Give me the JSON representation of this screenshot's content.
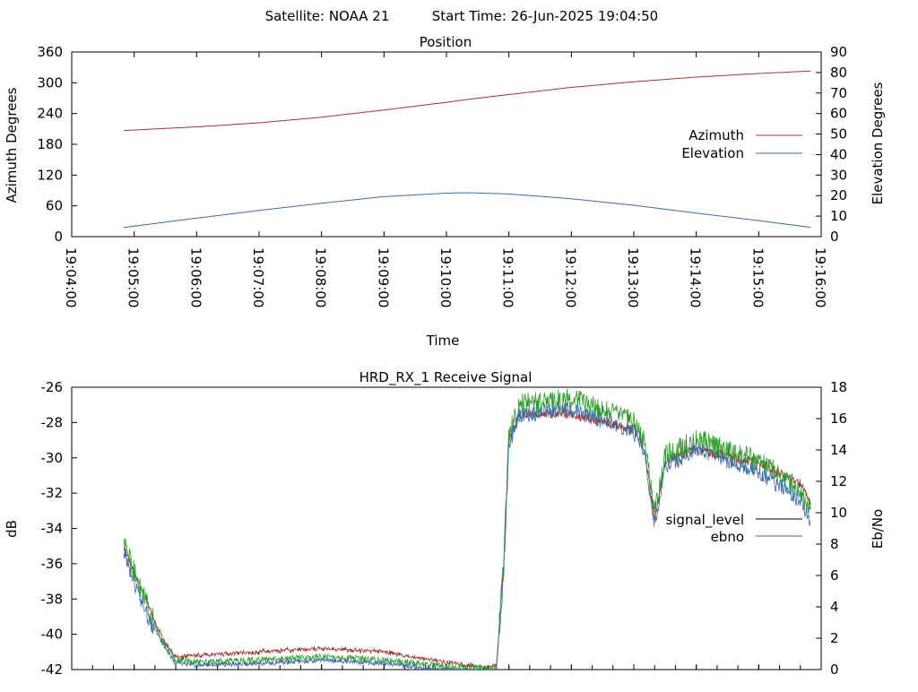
{
  "header": {
    "satellite_label": "Satellite: NOAA 21",
    "start_time_label": "Start Time: 26-Jun-2025 19:04:50"
  },
  "colors": {
    "azimuth": "#a83232",
    "elevation": "#3a6ea5",
    "signal_level": "#9c2f2f",
    "ebno": "#2a9a2a",
    "signal_level_legend": "#000000",
    "ebno_legend": "#3a6ea5",
    "axis": "#000000"
  },
  "chart_data": [
    {
      "type": "line",
      "title": "Position",
      "xlabel": "Time",
      "ylabel": "Azimuth Degrees",
      "y2label": "Elevation Degrees",
      "xlim": [
        "19:04:00",
        "19:16:00"
      ],
      "ylim": [
        0,
        360
      ],
      "y2lim": [
        0,
        90
      ],
      "x_ticks": [
        "19:04:00",
        "19:05:00",
        "19:06:00",
        "19:07:00",
        "19:08:00",
        "19:09:00",
        "19:10:00",
        "19:11:00",
        "19:12:00",
        "19:13:00",
        "19:14:00",
        "19:15:00",
        "19:16:00"
      ],
      "y_ticks": [
        0,
        60,
        120,
        180,
        240,
        300,
        360
      ],
      "y2_ticks": [
        0,
        10,
        20,
        30,
        40,
        50,
        60,
        70,
        80,
        90
      ],
      "legend_position": "right",
      "grid": false,
      "series": [
        {
          "name": "Azimuth",
          "axis": "y",
          "x": [
            "19:04:50",
            "19:06:00",
            "19:07:00",
            "19:08:00",
            "19:09:00",
            "19:10:00",
            "19:10:30",
            "19:11:00",
            "19:12:00",
            "19:13:00",
            "19:14:00",
            "19:15:00",
            "19:15:50"
          ],
          "values": [
            207,
            214,
            222,
            233,
            247,
            262,
            270,
            277,
            291,
            302,
            311,
            318,
            323
          ]
        },
        {
          "name": "Elevation",
          "axis": "y2",
          "x": [
            "19:04:50",
            "19:06:00",
            "19:07:00",
            "19:08:00",
            "19:09:00",
            "19:10:00",
            "19:10:20",
            "19:11:00",
            "19:12:00",
            "19:13:00",
            "19:14:00",
            "19:15:00",
            "19:15:50"
          ],
          "values": [
            4.5,
            9,
            12.8,
            16.3,
            19.5,
            21.2,
            21.4,
            20.8,
            18.5,
            15.3,
            11.5,
            7.8,
            4.5
          ]
        }
      ]
    },
    {
      "type": "line",
      "title": "HRD_RX_1 Receive Signal",
      "xlabel": "",
      "ylabel": "dB",
      "y2label": "Eb/No",
      "xlim": [
        "19:04:00",
        "19:16:00"
      ],
      "ylim": [
        -42,
        -26
      ],
      "y2lim": [
        0,
        18
      ],
      "y_ticks": [
        -42,
        -40,
        -38,
        -36,
        -34,
        -32,
        -30,
        -28,
        -26
      ],
      "y2_ticks": [
        0,
        2,
        4,
        6,
        8,
        10,
        12,
        14,
        16,
        18
      ],
      "legend_position": "right",
      "grid": false,
      "series": [
        {
          "name": "signal_level",
          "axis": "y",
          "x": [
            "19:04:50",
            "19:05:00",
            "19:05:10",
            "19:05:20",
            "19:05:30",
            "19:05:40",
            "19:06:00",
            "19:07:00",
            "19:08:00",
            "19:09:00",
            "19:10:00",
            "19:10:40",
            "19:10:48",
            "19:10:55",
            "19:11:00",
            "19:11:10",
            "19:12:00",
            "19:13:00",
            "19:13:10",
            "19:13:20",
            "19:13:30",
            "19:14:00",
            "19:15:00",
            "19:15:40",
            "19:15:50"
          ],
          "values": [
            -35.0,
            -36.5,
            -37.8,
            -39.3,
            -40.5,
            -41.3,
            -41.2,
            -41.0,
            -40.8,
            -41.0,
            -41.6,
            -41.9,
            -41.8,
            -36.0,
            -29.0,
            -27.6,
            -27.5,
            -28.4,
            -29.5,
            -33.5,
            -30.2,
            -29.5,
            -30.3,
            -31.5,
            -32.5
          ]
        },
        {
          "name": "ebno",
          "axis": "y2",
          "x": [
            "19:04:50",
            "19:05:00",
            "19:05:10",
            "19:05:20",
            "19:05:30",
            "19:05:40",
            "19:06:00",
            "19:07:00",
            "19:08:00",
            "19:09:00",
            "19:10:00",
            "19:10:48",
            "19:10:55",
            "19:11:00",
            "19:11:10",
            "19:12:00",
            "19:13:00",
            "19:13:10",
            "19:13:20",
            "19:13:30",
            "19:14:00",
            "19:15:00",
            "19:15:40",
            "19:15:50"
          ],
          "values": [
            8.2,
            6.2,
            4.6,
            2.8,
            1.5,
            0.6,
            0.5,
            0.6,
            0.8,
            0.6,
            0.2,
            0.1,
            7.0,
            15.0,
            16.9,
            17.3,
            15.8,
            14.5,
            10.0,
            13.6,
            14.7,
            13.3,
            11.5,
            10.2
          ]
        }
      ]
    }
  ]
}
